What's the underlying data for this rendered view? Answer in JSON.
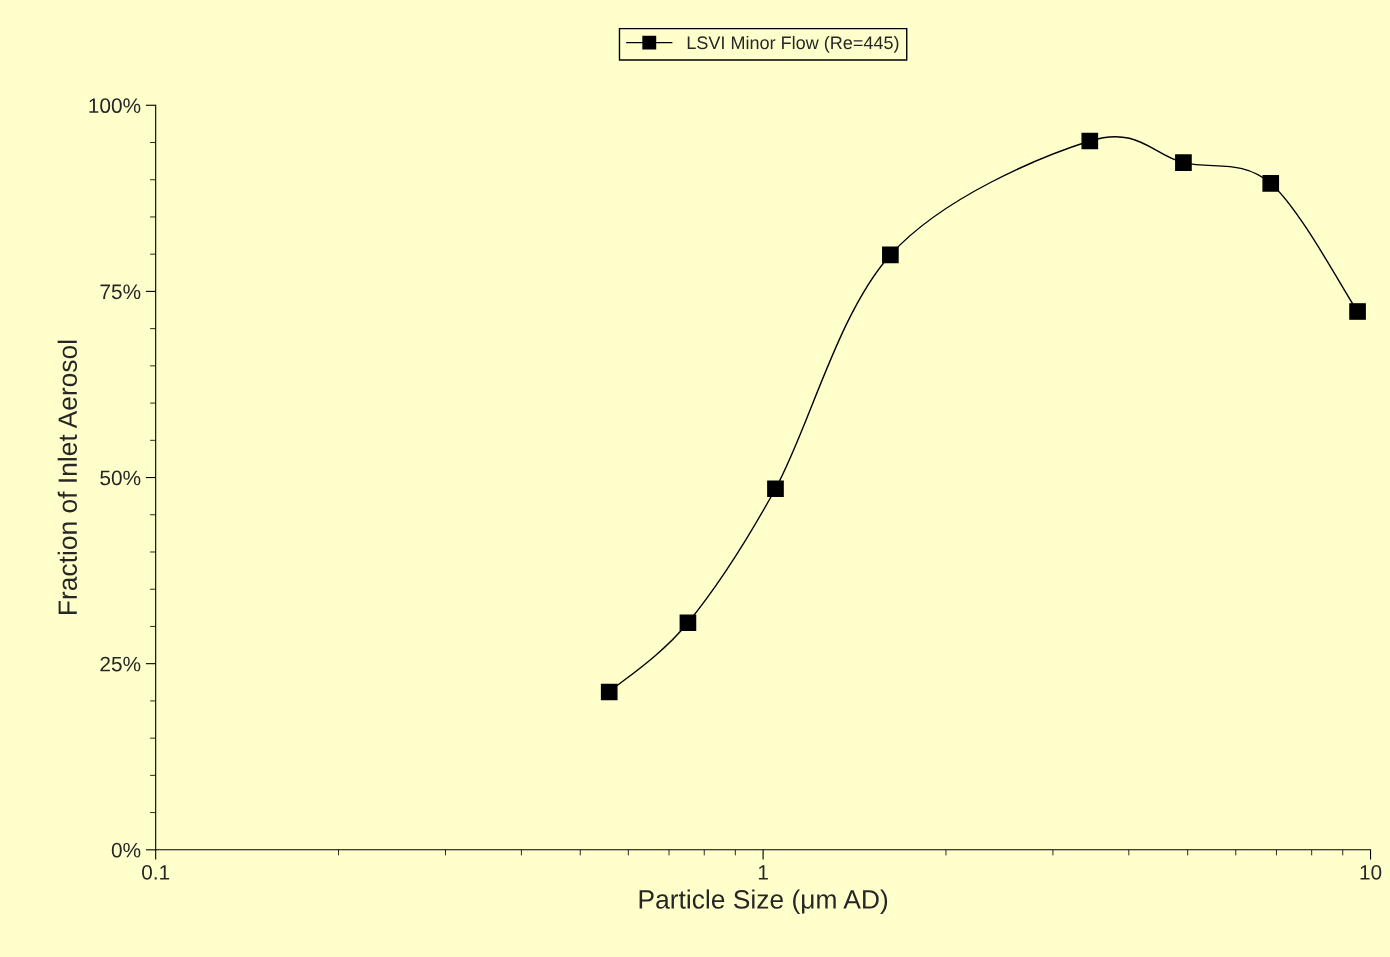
{
  "chart_data": {
    "type": "line",
    "xlabel": "Particle Size (μm AD)",
    "ylabel": "Fraction of Inlet Aerosol",
    "x": [
      0.558,
      0.752,
      1.048,
      1.62,
      3.45,
      4.92,
      6.85,
      9.52
    ],
    "series": [
      {
        "name": "LSVI Minor Flow (Re=445)",
        "color": "#000000",
        "values": [
          21.2,
          30.5,
          48.5,
          79.9,
          95.2,
          92.3,
          89.5,
          72.3
        ]
      }
    ],
    "log": "x",
    "xlim": [
      0.1,
      10
    ],
    "xticks": [
      0.1,
      1,
      10
    ],
    "ylim": [
      0,
      100
    ],
    "yticks": [
      {
        "value": 0,
        "label": "0%"
      },
      {
        "value": 25,
        "label": "25%"
      },
      {
        "value": 50,
        "label": "50%"
      },
      {
        "value": 75,
        "label": "75%"
      },
      {
        "value": 100,
        "label": "100%"
      }
    ],
    "legend": "top",
    "marker": "square",
    "line_style": "solid",
    "grid": false
  }
}
